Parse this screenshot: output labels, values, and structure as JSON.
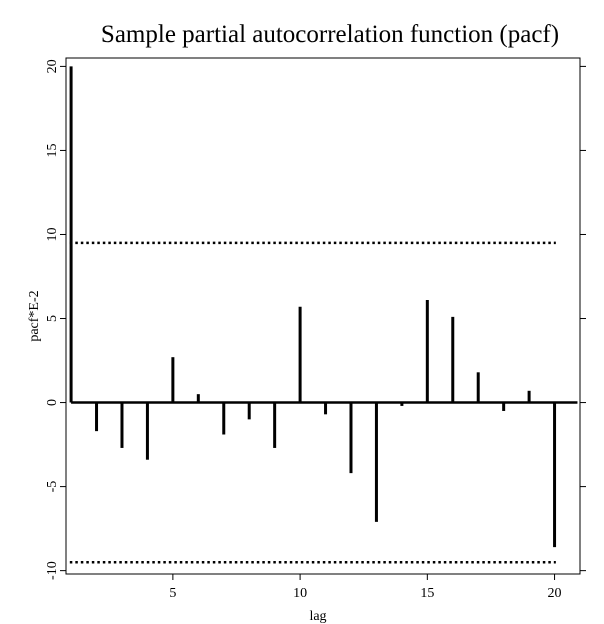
{
  "chart_data": {
    "type": "bar",
    "title": "Sample partial autocorrelation function (pacf)",
    "xlabel": "lag",
    "ylabel": "pacf*E-2",
    "x": [
      1,
      2,
      3,
      4,
      5,
      6,
      7,
      8,
      9,
      10,
      11,
      12,
      13,
      14,
      15,
      16,
      17,
      18,
      19,
      20
    ],
    "values": [
      20.0,
      -1.7,
      -2.7,
      -3.4,
      2.7,
      0.5,
      -1.9,
      -1.0,
      -2.7,
      5.7,
      -0.7,
      -4.2,
      -7.1,
      -0.2,
      6.1,
      5.1,
      1.8,
      -0.5,
      0.7,
      -8.6
    ],
    "xlim": [
      0.8,
      21
    ],
    "ylim": [
      -10.2,
      20.5
    ],
    "xticks": [
      "5",
      "10",
      "15",
      "20"
    ],
    "yticks": [
      "-10",
      "-5",
      "0",
      "5",
      "10",
      "15",
      "20"
    ],
    "confidence_bounds": [
      9.5,
      -9.5
    ],
    "grid": false,
    "legend": "none"
  }
}
